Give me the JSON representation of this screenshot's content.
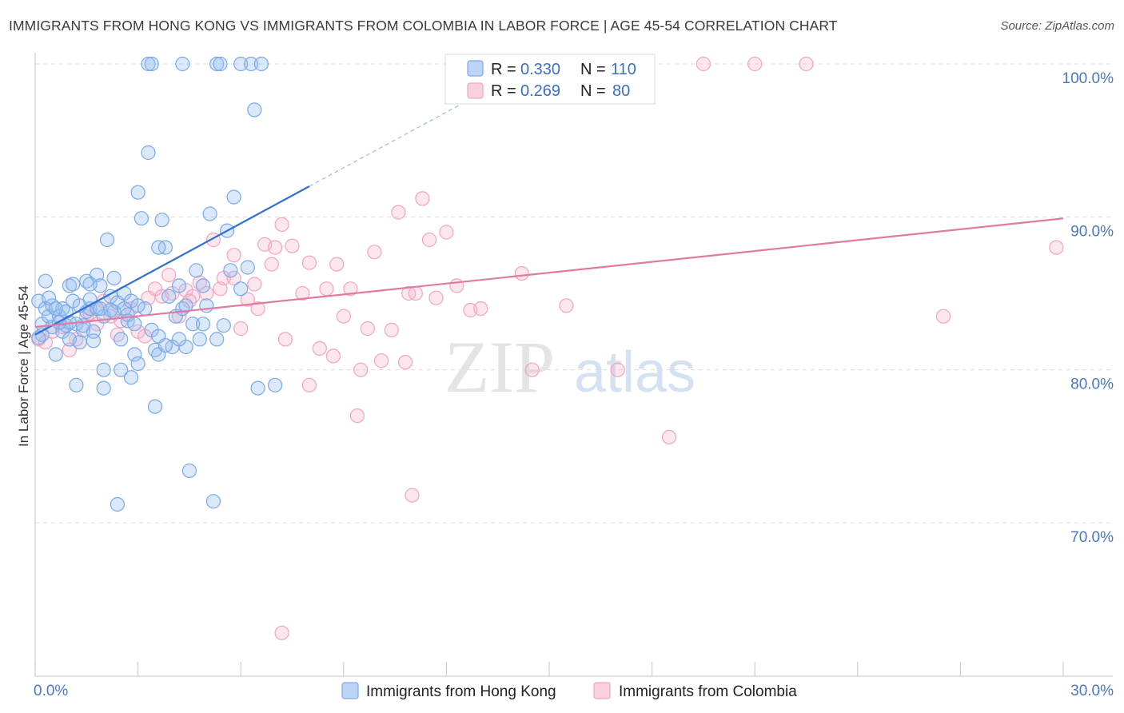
{
  "title": "IMMIGRANTS FROM HONG KONG VS IMMIGRANTS FROM COLOMBIA IN LABOR FORCE | AGE 45-54 CORRELATION CHART",
  "source": "Source: ZipAtlas.com",
  "watermark": {
    "zip": "ZIP",
    "atlas": "atlas"
  },
  "legend_box": {
    "r_label": "R =",
    "n_label": "N =",
    "rows": [
      {
        "r": "0.330",
        "n": "110"
      },
      {
        "r": "0.269",
        "n": "80"
      }
    ]
  },
  "chart_data": {
    "type": "scatter",
    "xlabel": "",
    "ylabel": "In Labor Force | Age 45-54",
    "x_ticks": [
      "0.0%",
      "30.0%"
    ],
    "y_ticks": [
      "100.0%",
      "90.0%",
      "80.0%",
      "70.0%"
    ],
    "xlim": [
      0,
      30
    ],
    "ylim": [
      62,
      102
    ],
    "grid": true,
    "legend_placement": "top-center",
    "series": [
      {
        "name": "Immigrants from Hong Kong",
        "color": "#7aa9e6",
        "line_color": "#2e6fd1",
        "trend": {
          "x": [
            0.0,
            8.0
          ],
          "y": [
            82.3,
            92.0
          ],
          "extend_to_x": 13.5
        },
        "points": [
          [
            0.1,
            84.5
          ],
          [
            0.2,
            83.0
          ],
          [
            0.3,
            85.8
          ],
          [
            0.3,
            84.0
          ],
          [
            0.4,
            83.5
          ],
          [
            0.5,
            82.8
          ],
          [
            0.5,
            84.2
          ],
          [
            0.6,
            81.0
          ],
          [
            0.7,
            83.5
          ],
          [
            0.8,
            84.0
          ],
          [
            0.8,
            82.5
          ],
          [
            0.9,
            83.8
          ],
          [
            1.0,
            85.5
          ],
          [
            1.0,
            82.0
          ],
          [
            1.1,
            84.5
          ],
          [
            1.2,
            79.0
          ],
          [
            1.2,
            83.0
          ],
          [
            1.3,
            81.8
          ],
          [
            1.4,
            82.6
          ],
          [
            1.5,
            85.8
          ],
          [
            1.5,
            83.8
          ],
          [
            1.6,
            84.0
          ],
          [
            1.7,
            82.5
          ],
          [
            1.8,
            86.2
          ],
          [
            1.8,
            84.0
          ],
          [
            1.9,
            85.5
          ],
          [
            2.0,
            83.5
          ],
          [
            2.0,
            78.8
          ],
          [
            2.1,
            88.5
          ],
          [
            2.2,
            84.8
          ],
          [
            2.3,
            83.8
          ],
          [
            2.4,
            84.4
          ],
          [
            2.5,
            82.0
          ],
          [
            2.5,
            80.0
          ],
          [
            2.6,
            85.0
          ],
          [
            2.7,
            83.2
          ],
          [
            2.8,
            84.5
          ],
          [
            2.8,
            79.5
          ],
          [
            2.9,
            81.0
          ],
          [
            3.0,
            80.4
          ],
          [
            3.0,
            91.6
          ],
          [
            3.1,
            89.9
          ],
          [
            3.2,
            84.0
          ],
          [
            3.3,
            94.2
          ],
          [
            3.4,
            82.6
          ],
          [
            3.5,
            81.3
          ],
          [
            3.5,
            77.6
          ],
          [
            3.6,
            81.0
          ],
          [
            3.7,
            89.8
          ],
          [
            3.8,
            88.0
          ],
          [
            3.9,
            84.8
          ],
          [
            4.0,
            81.5
          ],
          [
            4.1,
            83.5
          ],
          [
            4.2,
            85.5
          ],
          [
            4.3,
            84.0
          ],
          [
            4.4,
            81.5
          ],
          [
            4.5,
            73.4
          ],
          [
            4.6,
            83.0
          ],
          [
            4.7,
            86.5
          ],
          [
            4.8,
            82.0
          ],
          [
            4.9,
            85.5
          ],
          [
            5.0,
            84.2
          ],
          [
            5.1,
            90.2
          ],
          [
            5.2,
            71.4
          ],
          [
            5.3,
            82.0
          ],
          [
            5.5,
            82.9
          ],
          [
            5.6,
            89.1
          ],
          [
            5.7,
            86.5
          ],
          [
            5.8,
            91.3
          ],
          [
            6.0,
            85.3
          ],
          [
            6.2,
            86.7
          ],
          [
            6.4,
            97.0
          ],
          [
            6.5,
            78.8
          ],
          [
            7.0,
            79.0
          ],
          [
            2.4,
            71.2
          ],
          [
            2.0,
            80.0
          ],
          [
            3.3,
            100.0
          ],
          [
            3.4,
            100.0
          ],
          [
            4.3,
            100.0
          ],
          [
            5.3,
            100.0
          ],
          [
            5.4,
            100.0
          ],
          [
            6.0,
            100.0
          ],
          [
            6.3,
            100.0
          ],
          [
            6.6,
            100.0
          ],
          [
            1.1,
            85.6
          ],
          [
            1.6,
            85.6
          ],
          [
            2.3,
            86.0
          ],
          [
            2.6,
            84.0
          ],
          [
            3.6,
            82.2
          ],
          [
            3.6,
            88.0
          ],
          [
            4.2,
            82.0
          ],
          [
            4.4,
            84.2
          ],
          [
            1.3,
            84.2
          ],
          [
            1.9,
            84.0
          ],
          [
            0.9,
            82.9
          ],
          [
            1.4,
            82.9
          ],
          [
            2.7,
            83.6
          ],
          [
            1.7,
            81.9
          ],
          [
            0.6,
            84.0
          ],
          [
            0.4,
            84.7
          ],
          [
            4.9,
            83.0
          ],
          [
            3.8,
            81.6
          ],
          [
            2.9,
            83.0
          ],
          [
            1.0,
            83.1
          ],
          [
            0.2,
            82.3
          ],
          [
            0.7,
            83.1
          ],
          [
            1.6,
            84.6
          ],
          [
            2.2,
            83.9
          ],
          [
            3.0,
            84.2
          ],
          [
            0.1,
            82.1
          ]
        ]
      },
      {
        "name": "Immigrants from Colombia",
        "color": "#f4a3c0",
        "line_color": "#e07aa1",
        "trend": {
          "x": [
            0.0,
            30.0
          ],
          "y": [
            82.8,
            89.9
          ]
        },
        "points": [
          [
            0.1,
            82.0
          ],
          [
            0.3,
            81.8
          ],
          [
            0.5,
            82.5
          ],
          [
            0.8,
            82.8
          ],
          [
            1.0,
            81.3
          ],
          [
            1.2,
            82.0
          ],
          [
            1.5,
            83.5
          ],
          [
            1.8,
            83.0
          ],
          [
            2.0,
            84.5
          ],
          [
            2.2,
            83.5
          ],
          [
            2.5,
            83.2
          ],
          [
            2.8,
            84.0
          ],
          [
            3.0,
            82.5
          ],
          [
            3.2,
            82.2
          ],
          [
            3.5,
            85.3
          ],
          [
            3.7,
            84.8
          ],
          [
            3.9,
            86.2
          ],
          [
            4.0,
            85.0
          ],
          [
            4.2,
            83.5
          ],
          [
            4.4,
            85.2
          ],
          [
            4.6,
            84.8
          ],
          [
            4.8,
            85.7
          ],
          [
            5.0,
            85.0
          ],
          [
            5.2,
            88.5
          ],
          [
            5.4,
            85.3
          ],
          [
            5.5,
            86.0
          ],
          [
            5.8,
            87.5
          ],
          [
            6.0,
            82.7
          ],
          [
            6.2,
            84.6
          ],
          [
            6.4,
            85.6
          ],
          [
            6.7,
            88.2
          ],
          [
            6.9,
            86.9
          ],
          [
            7.0,
            88.0
          ],
          [
            7.2,
            89.5
          ],
          [
            7.3,
            82.0
          ],
          [
            7.5,
            88.1
          ],
          [
            7.8,
            85.0
          ],
          [
            8.0,
            87.0
          ],
          [
            8.3,
            81.4
          ],
          [
            8.5,
            85.3
          ],
          [
            8.7,
            80.9
          ],
          [
            8.8,
            86.9
          ],
          [
            9.0,
            83.5
          ],
          [
            9.2,
            85.3
          ],
          [
            9.4,
            77.0
          ],
          [
            9.5,
            80.0
          ],
          [
            9.7,
            82.7
          ],
          [
            9.9,
            87.7
          ],
          [
            10.1,
            80.6
          ],
          [
            10.4,
            82.6
          ],
          [
            10.6,
            90.3
          ],
          [
            10.8,
            80.5
          ],
          [
            10.9,
            85.0
          ],
          [
            11.1,
            85.0
          ],
          [
            11.5,
            88.5
          ],
          [
            11.7,
            84.7
          ],
          [
            12.0,
            89.0
          ],
          [
            12.3,
            85.5
          ],
          [
            11.3,
            91.2
          ],
          [
            11.0,
            71.8
          ],
          [
            12.7,
            83.9
          ],
          [
            13.0,
            84.0
          ],
          [
            14.2,
            86.3
          ],
          [
            14.5,
            80.0
          ],
          [
            15.5,
            84.2
          ],
          [
            17.0,
            80.0
          ],
          [
            18.5,
            75.6
          ],
          [
            19.5,
            100.0
          ],
          [
            21.0,
            100.0
          ],
          [
            22.5,
            100.0
          ],
          [
            26.5,
            83.5
          ],
          [
            29.8,
            88.0
          ],
          [
            7.2,
            62.8
          ],
          [
            8.0,
            79.0
          ],
          [
            6.5,
            84.0
          ],
          [
            5.8,
            86.0
          ],
          [
            4.5,
            84.5
          ],
          [
            3.3,
            84.7
          ],
          [
            2.4,
            82.3
          ],
          [
            1.6,
            83.7
          ]
        ]
      }
    ]
  }
}
